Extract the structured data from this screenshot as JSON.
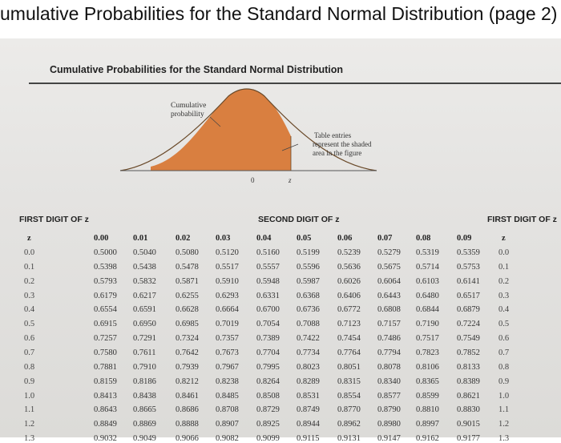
{
  "slide_title": "umulative Probabilities for the Standard Normal Distribution (page 2)",
  "doc_title": "Cumulative Probabilities for the Standard Normal Distribution",
  "figure": {
    "cumulative_label_line1": "Cumulative",
    "cumulative_label_line2": "probability",
    "note_line1": "Table entries",
    "note_line2": "represent the shaded",
    "note_line3": "area in the figure",
    "zero_label": "0",
    "z_label": "z"
  },
  "table": {
    "first_digit_left": "FIRST DIGIT OF z",
    "second_digit": "SECOND DIGIT OF z",
    "first_digit_right": "FIRST DIGIT OF z",
    "z_symbol": "z",
    "columns": [
      "0.00",
      "0.01",
      "0.02",
      "0.03",
      "0.04",
      "0.05",
      "0.06",
      "0.07",
      "0.08",
      "0.09"
    ],
    "rows": [
      {
        "z": "0.0",
        "values": [
          "0.5000",
          "0.5040",
          "0.5080",
          "0.5120",
          "0.5160",
          "0.5199",
          "0.5239",
          "0.5279",
          "0.5319",
          "0.5359"
        ]
      },
      {
        "z": "0.1",
        "values": [
          "0.5398",
          "0.5438",
          "0.5478",
          "0.5517",
          "0.5557",
          "0.5596",
          "0.5636",
          "0.5675",
          "0.5714",
          "0.5753"
        ]
      },
      {
        "z": "0.2",
        "values": [
          "0.5793",
          "0.5832",
          "0.5871",
          "0.5910",
          "0.5948",
          "0.5987",
          "0.6026",
          "0.6064",
          "0.6103",
          "0.6141"
        ]
      },
      {
        "z": "0.3",
        "values": [
          "0.6179",
          "0.6217",
          "0.6255",
          "0.6293",
          "0.6331",
          "0.6368",
          "0.6406",
          "0.6443",
          "0.6480",
          "0.6517"
        ]
      },
      {
        "z": "0.4",
        "values": [
          "0.6554",
          "0.6591",
          "0.6628",
          "0.6664",
          "0.6700",
          "0.6736",
          "0.6772",
          "0.6808",
          "0.6844",
          "0.6879"
        ]
      },
      {
        "z": "0.5",
        "values": [
          "0.6915",
          "0.6950",
          "0.6985",
          "0.7019",
          "0.7054",
          "0.7088",
          "0.7123",
          "0.7157",
          "0.7190",
          "0.7224"
        ]
      },
      {
        "z": "0.6",
        "values": [
          "0.7257",
          "0.7291",
          "0.7324",
          "0.7357",
          "0.7389",
          "0.7422",
          "0.7454",
          "0.7486",
          "0.7517",
          "0.7549"
        ]
      },
      {
        "z": "0.7",
        "values": [
          "0.7580",
          "0.7611",
          "0.7642",
          "0.7673",
          "0.7704",
          "0.7734",
          "0.7764",
          "0.7794",
          "0.7823",
          "0.7852"
        ]
      },
      {
        "z": "0.8",
        "values": [
          "0.7881",
          "0.7910",
          "0.7939",
          "0.7967",
          "0.7995",
          "0.8023",
          "0.8051",
          "0.8078",
          "0.8106",
          "0.8133"
        ]
      },
      {
        "z": "0.9",
        "values": [
          "0.8159",
          "0.8186",
          "0.8212",
          "0.8238",
          "0.8264",
          "0.8289",
          "0.8315",
          "0.8340",
          "0.8365",
          "0.8389"
        ]
      },
      {
        "z": "1.0",
        "values": [
          "0.8413",
          "0.8438",
          "0.8461",
          "0.8485",
          "0.8508",
          "0.8531",
          "0.8554",
          "0.8577",
          "0.8599",
          "0.8621"
        ]
      },
      {
        "z": "1.1",
        "values": [
          "0.8643",
          "0.8665",
          "0.8686",
          "0.8708",
          "0.8729",
          "0.8749",
          "0.8770",
          "0.8790",
          "0.8810",
          "0.8830"
        ]
      },
      {
        "z": "1.2",
        "values": [
          "0.8849",
          "0.8869",
          "0.8888",
          "0.8907",
          "0.8925",
          "0.8944",
          "0.8962",
          "0.8980",
          "0.8997",
          "0.9015"
        ]
      },
      {
        "z": "1.3",
        "values": [
          "0.9032",
          "0.9049",
          "0.9066",
          "0.9082",
          "0.9099",
          "0.9115",
          "0.9131",
          "0.9147",
          "0.9162",
          "0.9177"
        ]
      }
    ]
  }
}
